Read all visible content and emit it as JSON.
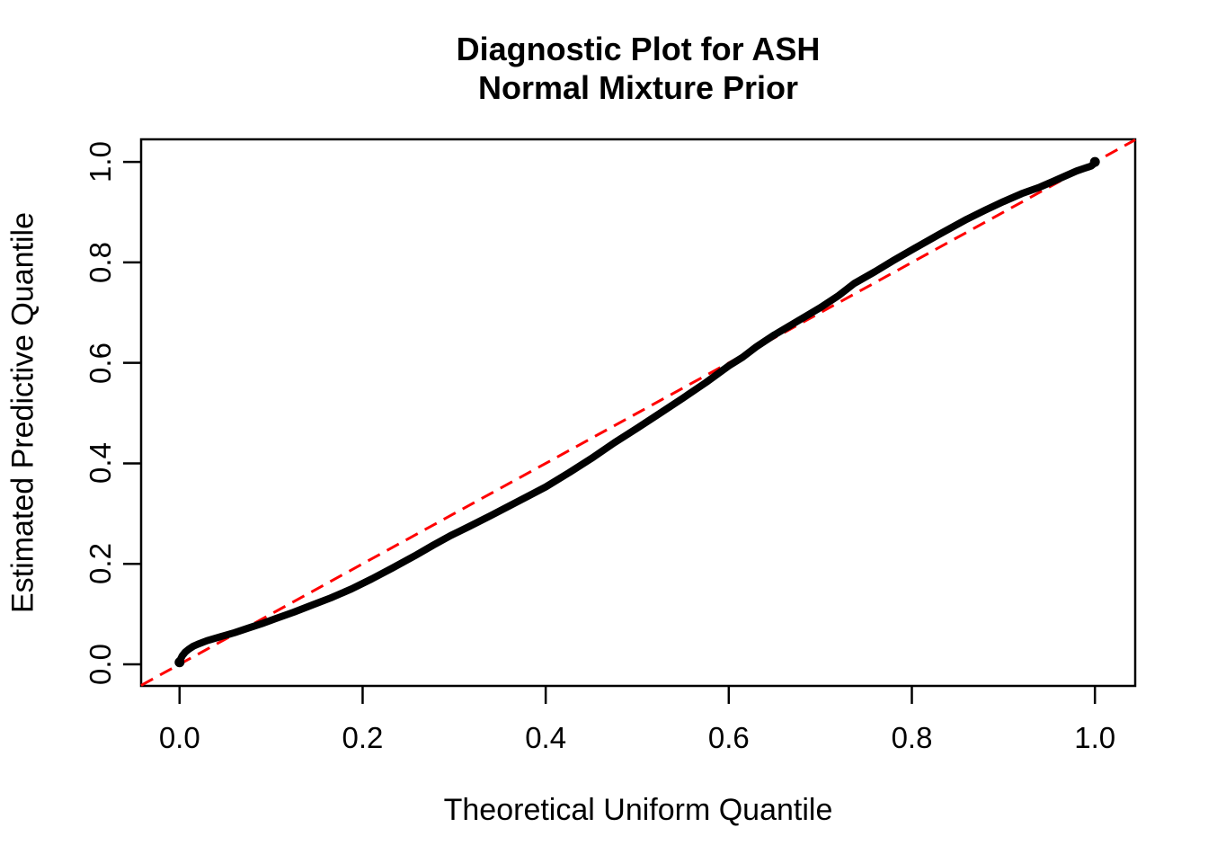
{
  "title": {
    "line1": "Diagnostic Plot for ASH",
    "line2": "Normal Mixture Prior"
  },
  "axes": {
    "x_label": "Theoretical Uniform Quantile",
    "y_label": "Estimated Predictive Quantile",
    "x_ticks": [
      "0.0",
      "0.2",
      "0.4",
      "0.6",
      "0.8",
      "1.0"
    ],
    "y_ticks": [
      "0.0",
      "0.2",
      "0.4",
      "0.6",
      "0.8",
      "1.0"
    ]
  },
  "colors": {
    "curve": "#000000",
    "reference_line": "#FF0000",
    "frame": "#000000",
    "background": "#FFFFFF"
  },
  "chart_data": {
    "type": "line",
    "title": "Diagnostic Plot for ASH\nNormal Mixture Prior",
    "xlabel": "Theoretical Uniform Quantile",
    "ylabel": "Estimated Predictive Quantile",
    "xlim": [
      -0.042,
      1.044
    ],
    "ylim": [
      -0.043,
      1.045
    ],
    "x_tick_values": [
      0.0,
      0.2,
      0.4,
      0.6,
      0.8,
      1.0
    ],
    "y_tick_values": [
      0.0,
      0.2,
      0.4,
      0.6,
      0.8,
      1.0
    ],
    "grid": false,
    "legend": "none",
    "series": [
      {
        "name": "identity-reference-line",
        "style": "dashed",
        "color": "#FF0000",
        "points": [
          [
            -0.042,
            -0.042
          ],
          [
            1.044,
            1.044
          ]
        ]
      },
      {
        "name": "estimated-predictive-quantile-curve",
        "style": "thick-point-curve",
        "color": "#000000",
        "points": [
          [
            0.0,
            0.004
          ],
          [
            0.001,
            0.01
          ],
          [
            0.003,
            0.017
          ],
          [
            0.006,
            0.024
          ],
          [
            0.01,
            0.03
          ],
          [
            0.015,
            0.036
          ],
          [
            0.02,
            0.04
          ],
          [
            0.03,
            0.047
          ],
          [
            0.045,
            0.055
          ],
          [
            0.06,
            0.063
          ],
          [
            0.075,
            0.072
          ],
          [
            0.09,
            0.081
          ],
          [
            0.105,
            0.091
          ],
          [
            0.125,
            0.104
          ],
          [
            0.145,
            0.118
          ],
          [
            0.165,
            0.132
          ],
          [
            0.188,
            0.15
          ],
          [
            0.21,
            0.17
          ],
          [
            0.232,
            0.191
          ],
          [
            0.257,
            0.216
          ],
          [
            0.277,
            0.237
          ],
          [
            0.296,
            0.256
          ],
          [
            0.316,
            0.274
          ],
          [
            0.34,
            0.296
          ],
          [
            0.36,
            0.315
          ],
          [
            0.38,
            0.334
          ],
          [
            0.4,
            0.353
          ],
          [
            0.425,
            0.381
          ],
          [
            0.45,
            0.41
          ],
          [
            0.475,
            0.441
          ],
          [
            0.5,
            0.47
          ],
          [
            0.525,
            0.5
          ],
          [
            0.55,
            0.53
          ],
          [
            0.575,
            0.561
          ],
          [
            0.6,
            0.594
          ],
          [
            0.615,
            0.611
          ],
          [
            0.63,
            0.632
          ],
          [
            0.65,
            0.656
          ],
          [
            0.675,
            0.683
          ],
          [
            0.7,
            0.71
          ],
          [
            0.72,
            0.734
          ],
          [
            0.737,
            0.758
          ],
          [
            0.76,
            0.782
          ],
          [
            0.78,
            0.804
          ],
          [
            0.8,
            0.825
          ],
          [
            0.83,
            0.856
          ],
          [
            0.86,
            0.886
          ],
          [
            0.88,
            0.904
          ],
          [
            0.9,
            0.921
          ],
          [
            0.92,
            0.937
          ],
          [
            0.94,
            0.95
          ],
          [
            0.955,
            0.962
          ],
          [
            0.97,
            0.974
          ],
          [
            0.98,
            0.982
          ],
          [
            0.988,
            0.987
          ],
          [
            0.993,
            0.99
          ],
          [
            0.996,
            0.992
          ],
          [
            0.998,
            0.995
          ],
          [
            0.9995,
            0.998
          ],
          [
            1.0,
            1.0
          ]
        ]
      }
    ]
  }
}
